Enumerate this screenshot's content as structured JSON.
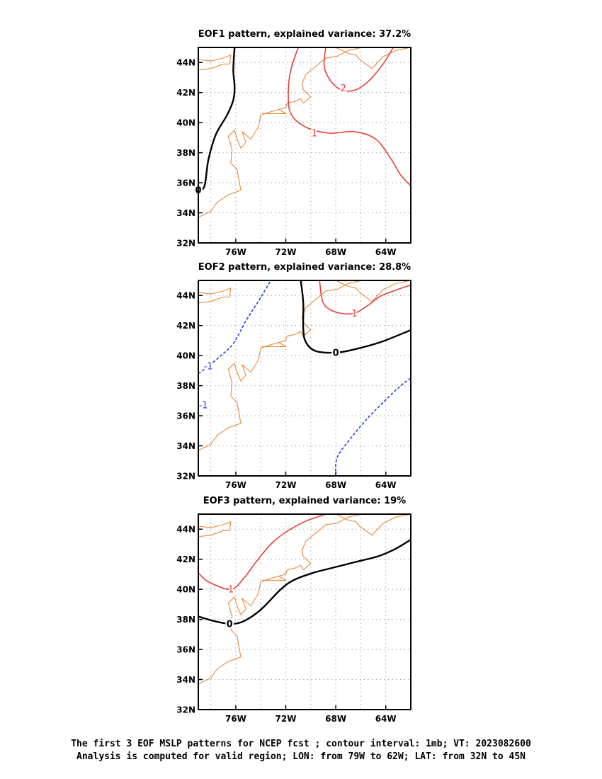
{
  "colors": {
    "coast": "#e8893a",
    "positive": "#e8403a",
    "zero": "#000000",
    "negative": "#2a3fe0",
    "grid": "#9a9a9a"
  },
  "axes": {
    "lon_range": [
      -79,
      -62
    ],
    "lat_range": [
      32,
      45
    ],
    "lon_ticks": [
      {
        "value": -76,
        "label": "76W"
      },
      {
        "value": -72,
        "label": "72W"
      },
      {
        "value": -68,
        "label": "68W"
      },
      {
        "value": -64,
        "label": "64W"
      }
    ],
    "lat_ticks": [
      {
        "value": 32,
        "label": "32N"
      },
      {
        "value": 34,
        "label": "34N"
      },
      {
        "value": 36,
        "label": "36N"
      },
      {
        "value": 38,
        "label": "38N"
      },
      {
        "value": 40,
        "label": "40N"
      },
      {
        "value": 42,
        "label": "42N"
      },
      {
        "value": 44,
        "label": "44N"
      }
    ],
    "grid": "dotted"
  },
  "coastline": [
    [
      [
        -79,
        43.5
      ],
      [
        -78,
        43.6
      ],
      [
        -77,
        43.9
      ],
      [
        -76.5,
        43.9
      ],
      [
        -76.4,
        44.5
      ],
      [
        -77,
        44.3
      ],
      [
        -78,
        44.1
      ],
      [
        -79,
        44.2
      ]
    ],
    [
      [
        -79,
        33.7
      ],
      [
        -78,
        34.1
      ],
      [
        -77.5,
        34.7
      ],
      [
        -76.6,
        35.2
      ],
      [
        -75.6,
        35.5
      ],
      [
        -75.8,
        36.4
      ],
      [
        -75.9,
        36.9
      ],
      [
        -76.4,
        37.3
      ],
      [
        -76.3,
        38.2
      ],
      [
        -76.6,
        39.1
      ],
      [
        -76.1,
        39.5
      ],
      [
        -75.9,
        38.9
      ],
      [
        -75.6,
        38.3
      ],
      [
        -75.2,
        38.7
      ],
      [
        -75.5,
        39.4
      ],
      [
        -74.8,
        38.9
      ],
      [
        -74.2,
        39.7
      ],
      [
        -74.0,
        40.5
      ],
      [
        -73.3,
        40.7
      ],
      [
        -72.0,
        41.0
      ],
      [
        -71.9,
        41.3
      ],
      [
        -71.3,
        41.4
      ],
      [
        -70.8,
        41.6
      ],
      [
        -70.6,
        41.3
      ],
      [
        -70.0,
        41.7
      ],
      [
        -70.6,
        42.2
      ],
      [
        -70.7,
        42.6
      ],
      [
        -70.4,
        43.2
      ],
      [
        -69.8,
        43.6
      ],
      [
        -68.8,
        44.3
      ],
      [
        -67.9,
        44.4
      ],
      [
        -67.0,
        44.8
      ],
      [
        -65.9,
        45.0
      ]
    ],
    [
      [
        -66.1,
        44.2
      ],
      [
        -65.1,
        43.6
      ],
      [
        -64.2,
        44.4
      ],
      [
        -63.2,
        44.8
      ],
      [
        -62,
        45.0
      ]
    ],
    [
      [
        -68.0,
        45.0
      ],
      [
        -67.0,
        44.6
      ],
      [
        -66.4,
        44.5
      ],
      [
        -66.1,
        44.2
      ]
    ],
    [
      [
        -72.6,
        40.9
      ],
      [
        -72.0,
        40.6
      ],
      [
        -73.0,
        40.6
      ],
      [
        -73.9,
        40.6
      ]
    ]
  ],
  "panels": [
    {
      "title": "EOF1 pattern, explained variance: 37.2%",
      "contours": [
        {
          "level": 0,
          "style": "zero",
          "label": "0",
          "label_at": [
            -79,
            35.5
          ],
          "points": [
            [
              -79,
              35.4
            ],
            [
              -78.5,
              35.8
            ],
            [
              -78.2,
              37.5
            ],
            [
              -77.6,
              39.2
            ],
            [
              -76.7,
              40.5
            ],
            [
              -76.2,
              41.5
            ],
            [
              -76.1,
              42.4
            ],
            [
              -76.2,
              43.5
            ],
            [
              -76.1,
              45
            ]
          ]
        },
        {
          "level": 1,
          "style": "positive",
          "label": "1",
          "label_at": [
            -69.7,
            39.3
          ],
          "points": [
            [
              -71.0,
              45
            ],
            [
              -71.6,
              43.5
            ],
            [
              -71.8,
              42.0
            ],
            [
              -71.6,
              40.6
            ],
            [
              -70.4,
              39.7
            ],
            [
              -68.5,
              39.3
            ],
            [
              -66.5,
              39.4
            ],
            [
              -64.8,
              38.9
            ],
            [
              -63.6,
              37.6
            ],
            [
              -62.8,
              36.5
            ],
            [
              -62,
              35.8
            ]
          ]
        },
        {
          "level": 2,
          "style": "positive",
          "label": "2",
          "label_at": [
            -67.4,
            42.3
          ],
          "points": [
            [
              -68.8,
              45
            ],
            [
              -68.9,
              43.6
            ],
            [
              -68.0,
              42.4
            ],
            [
              -66.8,
              42.1
            ],
            [
              -65.6,
              42.6
            ],
            [
              -64.3,
              43.8
            ],
            [
              -63.4,
              45
            ]
          ]
        }
      ]
    },
    {
      "title": "EOF2 pattern, explained variance: 28.8%",
      "contours": [
        {
          "level": -1,
          "style": "negative",
          "label": "-1",
          "label_at": [
            -78.2,
            39.3
          ],
          "points": [
            [
              -79,
              38.8
            ],
            [
              -78.2,
              39.3
            ],
            [
              -77.2,
              40.0
            ],
            [
              -76.2,
              40.8
            ],
            [
              -75.2,
              42.3
            ],
            [
              -74.2,
              43.6
            ],
            [
              -73.2,
              45
            ]
          ]
        },
        {
          "level": -1,
          "style": "negative",
          "label": "-1",
          "label_at": [
            -78.6,
            36.7
          ],
          "points": [
            [
              -79,
              36.7
            ],
            [
              -78.85,
              36.7
            ]
          ]
        },
        {
          "level": -1,
          "style": "negative",
          "label": "",
          "label_at": null,
          "points": [
            [
              -68.0,
              32
            ],
            [
              -67.9,
              33.2
            ],
            [
              -66.9,
              34.4
            ],
            [
              -65.6,
              35.7
            ],
            [
              -64.2,
              36.9
            ],
            [
              -62.8,
              38.0
            ],
            [
              -62,
              38.5
            ]
          ]
        },
        {
          "level": 0,
          "style": "zero",
          "label": "0",
          "label_at": [
            -68.0,
            40.2
          ],
          "points": [
            [
              -70.8,
              45
            ],
            [
              -70.6,
              43.5
            ],
            [
              -70.6,
              41.8
            ],
            [
              -70.4,
              40.9
            ],
            [
              -69.6,
              40.3
            ],
            [
              -68.0,
              40.2
            ],
            [
              -66.6,
              40.4
            ],
            [
              -64.4,
              40.9
            ],
            [
              -62,
              41.7
            ]
          ]
        },
        {
          "level": 1,
          "style": "positive",
          "label": "1",
          "label_at": [
            -66.5,
            42.8
          ],
          "points": [
            [
              -69.3,
              45
            ],
            [
              -69.0,
              43.5
            ],
            [
              -68.0,
              42.9
            ],
            [
              -66.6,
              42.8
            ],
            [
              -65.5,
              43.3
            ],
            [
              -64.3,
              44.0
            ],
            [
              -62,
              44.7
            ]
          ]
        }
      ]
    },
    {
      "title": "EOF3 pattern, explained variance: 19%",
      "contours": [
        {
          "level": 0,
          "style": "zero",
          "label": "0",
          "label_at": [
            -76.5,
            37.7
          ],
          "points": [
            [
              -79,
              38.2
            ],
            [
              -77.8,
              37.9
            ],
            [
              -76.5,
              37.7
            ],
            [
              -75.6,
              37.8
            ],
            [
              -74.7,
              38.2
            ],
            [
              -73.8,
              38.8
            ],
            [
              -72.4,
              40.0
            ],
            [
              -71.4,
              40.6
            ],
            [
              -69.8,
              41.1
            ],
            [
              -68.4,
              41.4
            ],
            [
              -66.5,
              41.8
            ],
            [
              -64.6,
              42.2
            ],
            [
              -63.2,
              42.7
            ],
            [
              -62,
              43.3
            ]
          ]
        },
        {
          "level": 1,
          "style": "positive",
          "label": "1",
          "label_at": [
            -76.4,
            40.0
          ],
          "points": [
            [
              -79,
              41.1
            ],
            [
              -78.2,
              40.5
            ],
            [
              -76.4,
              40.0
            ],
            [
              -75.3,
              40.8
            ],
            [
              -74.4,
              41.8
            ],
            [
              -73.2,
              43.0
            ],
            [
              -72.0,
              43.8
            ],
            [
              -70.5,
              44.5
            ],
            [
              -68.8,
              45
            ]
          ]
        }
      ]
    }
  ],
  "footer": {
    "line1": "The first 3 EOF MSLP patterns for NCEP fcst ; contour interval: 1mb; VT: 2023082600",
    "line2": "Analysis is computed for valid region; LON: from 79W to 62W; LAT: from 32N to 45N"
  }
}
